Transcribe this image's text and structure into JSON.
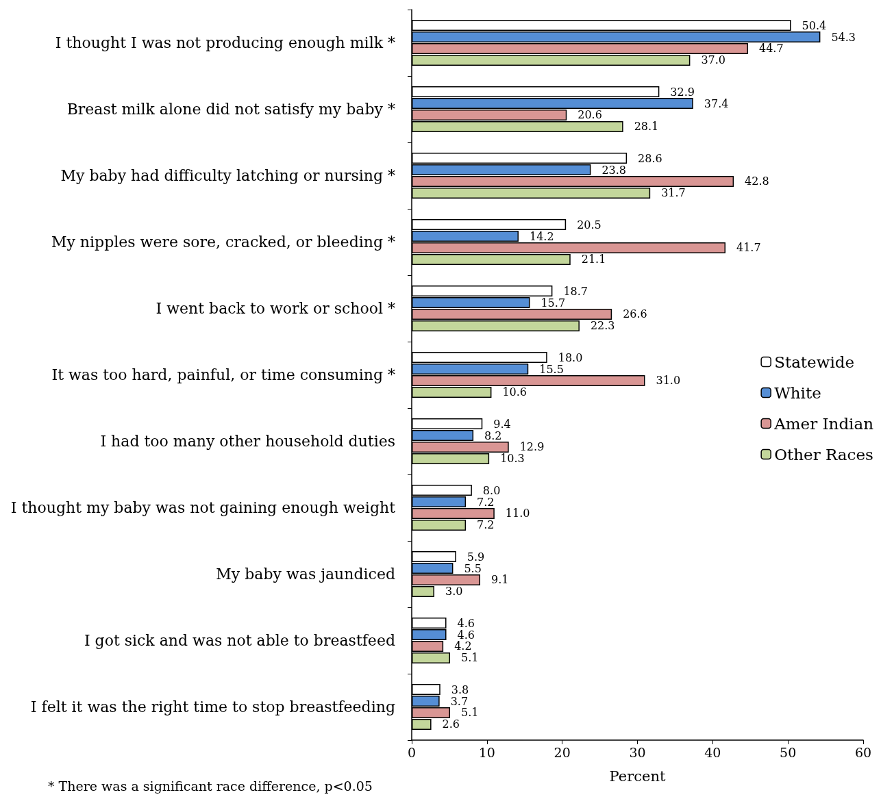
{
  "chart_data": {
    "type": "bar",
    "orientation": "horizontal",
    "xlabel": "Percent",
    "categories": [
      "I thought I was not producing enough milk *",
      "Breast milk alone did not satisfy my baby *",
      "My baby had difficulty latching or nursing *",
      "My nipples were sore, cracked, or bleeding *",
      "I went back to work or school *",
      "It was too hard, painful, or time consuming *",
      "I had too many other household duties",
      "I thought my baby was not gaining enough weight",
      "My baby was jaundiced",
      "I got sick and was not able to breastfeed",
      "I felt it was the right time to stop breastfeeding"
    ],
    "series": [
      {
        "name": "Statewide",
        "color": "#ffffff",
        "values": [
          50.4,
          32.9,
          28.6,
          20.5,
          18.7,
          18.0,
          9.4,
          8.0,
          5.9,
          4.6,
          3.8
        ],
        "value_labels": [
          "50.4",
          "32.9",
          "28.6",
          "20.5",
          "18.7",
          "18.0",
          "9.4",
          "8.0",
          "5.9",
          "4.6",
          "3.8"
        ]
      },
      {
        "name": "White",
        "color": "#558ed5",
        "values": [
          54.3,
          37.4,
          23.8,
          14.2,
          15.7,
          15.5,
          8.2,
          7.2,
          5.5,
          4.6,
          3.7
        ],
        "value_labels": [
          "54.3",
          "37.4",
          "23.8",
          "14.2",
          "15.7",
          "15.5",
          "8.2",
          "7.2",
          "5.5",
          "4.6",
          "3.7"
        ]
      },
      {
        "name": "Amer Indian",
        "color": "#d99694",
        "values": [
          44.7,
          20.6,
          42.8,
          41.7,
          26.6,
          31.0,
          12.9,
          11.0,
          9.1,
          4.2,
          5.1
        ],
        "value_labels": [
          "44.7",
          "20.6",
          "42.8",
          "41.7",
          "26.6",
          "31.0",
          "12.9",
          "11.0",
          "9.1",
          "4.2",
          "5.1"
        ]
      },
      {
        "name": "Other Races",
        "color": "#c3d69b",
        "values": [
          37.0,
          28.1,
          31.7,
          21.1,
          22.3,
          10.6,
          10.3,
          7.2,
          3.0,
          5.1,
          2.6
        ],
        "value_labels": [
          "37.0",
          "28.1",
          "31.7",
          "21.1",
          "22.3",
          "10.6",
          "10.3",
          "7.2",
          "3.0",
          "5.1",
          "2.6"
        ]
      }
    ],
    "xlim": [
      0,
      60
    ],
    "xticks": [
      0,
      10,
      20,
      30,
      40,
      50,
      60
    ],
    "grid": false,
    "legend": "right",
    "annotations": [
      "* There was a significant race difference, p<0.05"
    ]
  }
}
